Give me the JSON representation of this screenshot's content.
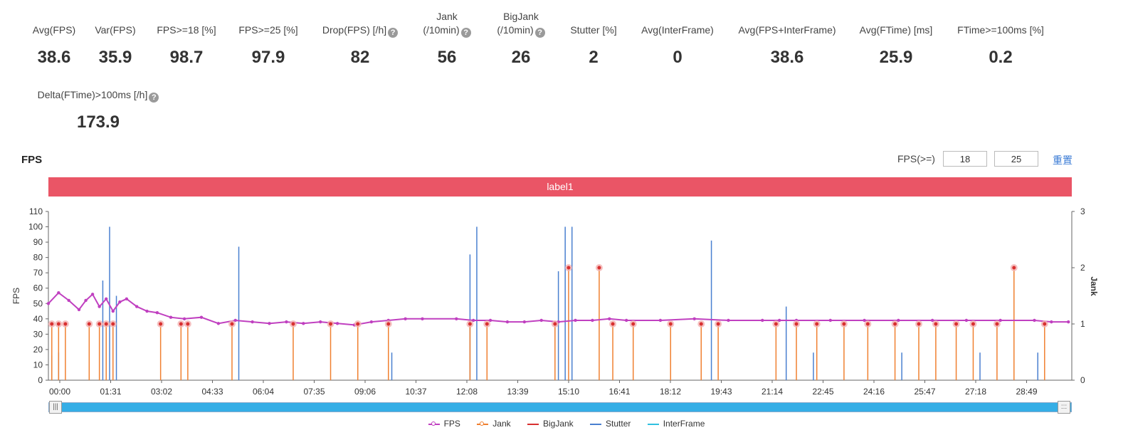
{
  "stats_row1": [
    {
      "label_lines": [
        "Avg(FPS)"
      ],
      "value": "38.6",
      "help": false
    },
    {
      "label_lines": [
        "Var(FPS)"
      ],
      "value": "35.9",
      "help": false
    },
    {
      "label_lines": [
        "FPS>=18 [%]"
      ],
      "value": "98.7",
      "help": false
    },
    {
      "label_lines": [
        "FPS>=25 [%]"
      ],
      "value": "97.9",
      "help": false
    },
    {
      "label_lines": [
        "Drop(FPS) [/h]"
      ],
      "value": "82",
      "help": true
    },
    {
      "label_lines": [
        "Jank",
        "(/10min)"
      ],
      "value": "56",
      "help": true
    },
    {
      "label_lines": [
        "BigJank",
        "(/10min)"
      ],
      "value": "26",
      "help": true
    },
    {
      "label_lines": [
        "Stutter [%]"
      ],
      "value": "2",
      "help": false
    },
    {
      "label_lines": [
        "Avg(InterFrame)"
      ],
      "value": "0",
      "help": false
    },
    {
      "label_lines": [
        "Avg(FPS+InterFrame)"
      ],
      "value": "38.6",
      "help": false
    },
    {
      "label_lines": [
        "Avg(FTime) [ms]"
      ],
      "value": "25.9",
      "help": false
    },
    {
      "label_lines": [
        "FTime>=100ms [%]"
      ],
      "value": "0.2",
      "help": false
    }
  ],
  "stats_row2": [
    {
      "label_lines": [
        "Delta(FTime)>100ms [/h]"
      ],
      "value": "173.9",
      "help": true
    }
  ],
  "help_glyph": "?",
  "section_title": "FPS",
  "fps_threshold": {
    "label": "FPS(>=)",
    "low": "18",
    "high": "25",
    "reset_label": "重置"
  },
  "label_bar": "label1",
  "colors": {
    "fps": "#c040c0",
    "jank": "#f08030",
    "bigjank": "#d83030",
    "stutter": "#4a80d0",
    "interframe": "#30c0e0",
    "label_bar": "#ea5566",
    "slider": "#35aee6"
  },
  "slider": {
    "left_grip": "|||",
    "right_grip": ":::"
  },
  "legend": [
    "FPS",
    "Jank",
    "BigJank",
    "Stutter",
    "InterFrame"
  ],
  "chart_data": {
    "type": "line",
    "xlabel": "",
    "ylabel": "FPS",
    "y2label": "Jank",
    "ylim": [
      0,
      110
    ],
    "y2lim": [
      0,
      3
    ],
    "yticks": [
      0,
      10,
      20,
      30,
      40,
      50,
      60,
      70,
      80,
      90,
      100,
      110
    ],
    "y2ticks": [
      0,
      1,
      2,
      3
    ],
    "x_tick_labels": [
      "00:00",
      "01:31",
      "03:02",
      "04:33",
      "06:04",
      "07:35",
      "09:06",
      "10:37",
      "12:08",
      "13:39",
      "15:10",
      "16:41",
      "18:12",
      "19:43",
      "21:14",
      "22:45",
      "24:16",
      "25:47",
      "27:18",
      "28:49"
    ],
    "x_max_minutes": 30.1,
    "grid": false,
    "legend_position": "bottom",
    "fps_series": [
      [
        0,
        50
      ],
      [
        0.3,
        57
      ],
      [
        0.6,
        52
      ],
      [
        0.9,
        46
      ],
      [
        1.1,
        52
      ],
      [
        1.3,
        56
      ],
      [
        1.5,
        48
      ],
      [
        1.7,
        53
      ],
      [
        1.9,
        45
      ],
      [
        2.1,
        51
      ],
      [
        2.3,
        53
      ],
      [
        2.6,
        48
      ],
      [
        2.9,
        45
      ],
      [
        3.2,
        44
      ],
      [
        3.6,
        41
      ],
      [
        4.0,
        40
      ],
      [
        4.5,
        41
      ],
      [
        5.0,
        37
      ],
      [
        5.5,
        39
      ],
      [
        6.0,
        38
      ],
      [
        6.5,
        37
      ],
      [
        7.0,
        38
      ],
      [
        7.5,
        37
      ],
      [
        8.0,
        38
      ],
      [
        8.5,
        37
      ],
      [
        9.0,
        36
      ],
      [
        9.5,
        38
      ],
      [
        10.0,
        39
      ],
      [
        10.5,
        40
      ],
      [
        11.0,
        40
      ],
      [
        12.0,
        40
      ],
      [
        12.5,
        39
      ],
      [
        13.0,
        39
      ],
      [
        13.5,
        38
      ],
      [
        14.0,
        38
      ],
      [
        14.5,
        39
      ],
      [
        15.0,
        38
      ],
      [
        15.5,
        39
      ],
      [
        16.0,
        39
      ],
      [
        16.5,
        40
      ],
      [
        17.0,
        39
      ],
      [
        18.0,
        39
      ],
      [
        19.0,
        40
      ],
      [
        20.0,
        39
      ],
      [
        21.0,
        39
      ],
      [
        21.5,
        39
      ],
      [
        22.0,
        39
      ],
      [
        23.0,
        39
      ],
      [
        24.0,
        39
      ],
      [
        25.0,
        39
      ],
      [
        26.0,
        39
      ],
      [
        27.0,
        39
      ],
      [
        28.0,
        39
      ],
      [
        29.0,
        39
      ],
      [
        29.5,
        38
      ],
      [
        30.0,
        38
      ]
    ],
    "jank_events": [
      [
        0.1,
        1
      ],
      [
        0.3,
        1
      ],
      [
        0.5,
        1
      ],
      [
        1.2,
        1
      ],
      [
        1.5,
        1
      ],
      [
        1.7,
        1
      ],
      [
        1.9,
        1
      ],
      [
        3.3,
        1
      ],
      [
        3.9,
        1
      ],
      [
        4.1,
        1
      ],
      [
        5.4,
        1
      ],
      [
        7.2,
        1
      ],
      [
        8.3,
        1
      ],
      [
        9.1,
        1
      ],
      [
        10.0,
        1
      ],
      [
        12.4,
        1
      ],
      [
        12.9,
        1
      ],
      [
        14.9,
        1
      ],
      [
        15.3,
        2
      ],
      [
        16.2,
        2
      ],
      [
        16.6,
        1
      ],
      [
        17.2,
        1
      ],
      [
        18.3,
        1
      ],
      [
        19.2,
        1
      ],
      [
        19.7,
        1
      ],
      [
        21.4,
        1
      ],
      [
        22.0,
        1
      ],
      [
        22.6,
        1
      ],
      [
        23.4,
        1
      ],
      [
        24.1,
        1
      ],
      [
        24.9,
        1
      ],
      [
        25.6,
        1
      ],
      [
        26.1,
        1
      ],
      [
        26.7,
        1
      ],
      [
        27.2,
        1
      ],
      [
        27.9,
        1
      ],
      [
        28.4,
        2
      ],
      [
        29.3,
        1
      ]
    ],
    "stutter_events": [
      [
        0.1,
        16
      ],
      [
        0.3,
        18
      ],
      [
        1.6,
        65
      ],
      [
        1.8,
        100
      ],
      [
        2.0,
        55
      ],
      [
        5.6,
        87
      ],
      [
        10.1,
        18
      ],
      [
        12.4,
        82
      ],
      [
        12.6,
        100
      ],
      [
        15.0,
        71
      ],
      [
        15.2,
        100
      ],
      [
        15.4,
        100
      ],
      [
        19.5,
        91
      ],
      [
        21.7,
        48
      ],
      [
        22.5,
        18
      ],
      [
        25.1,
        18
      ],
      [
        27.4,
        18
      ],
      [
        29.1,
        18
      ]
    ]
  }
}
